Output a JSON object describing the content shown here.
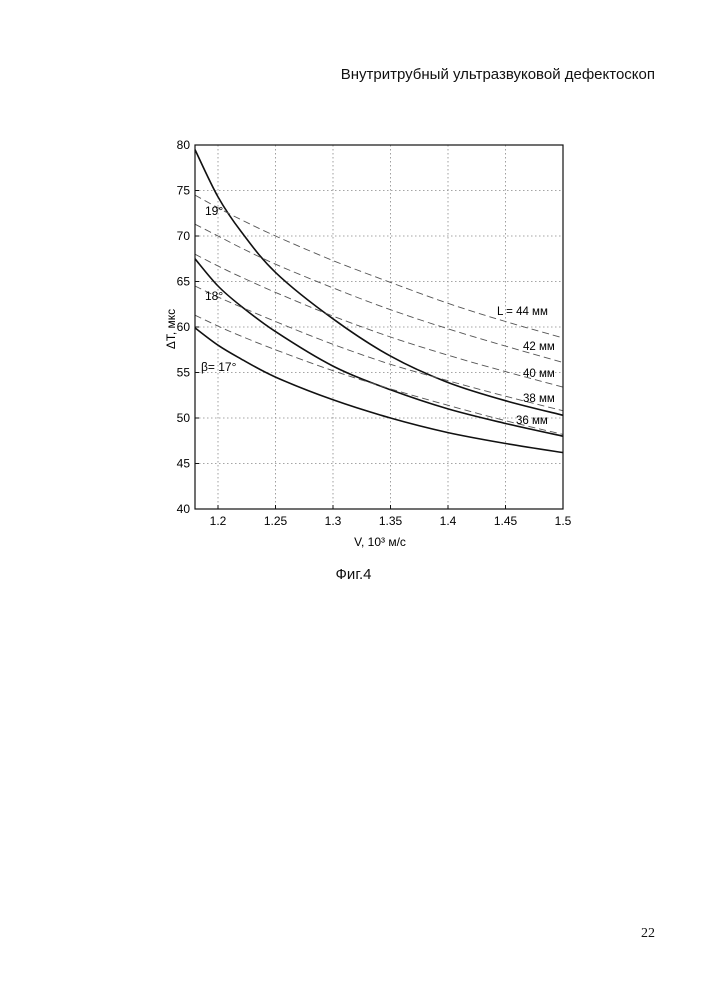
{
  "header": {
    "title": "Внутритрубный ультразвуковой дефектоскоп"
  },
  "figure": {
    "caption": "Фиг.4"
  },
  "page": {
    "number": "22"
  },
  "chart_data": {
    "type": "line",
    "xlabel": "V, 10³ м/с",
    "ylabel": "ΔT, мкс",
    "xlim": [
      1.18,
      1.5
    ],
    "ylim": [
      40,
      80
    ],
    "xticks": [
      "1.2",
      "1.25",
      "1.3",
      "1.35",
      "1.4",
      "1.45",
      "1.5"
    ],
    "xtick_values": [
      1.2,
      1.25,
      1.3,
      1.35,
      1.4,
      1.45,
      1.5
    ],
    "yticks": [
      "40",
      "45",
      "50",
      "55",
      "60",
      "65",
      "70",
      "75",
      "80"
    ],
    "ytick_values": [
      40,
      45,
      50,
      55,
      60,
      65,
      70,
      75,
      80
    ],
    "grid": true,
    "x": [
      1.18,
      1.2,
      1.22,
      1.25,
      1.3,
      1.35,
      1.4,
      1.45,
      1.5
    ],
    "series": [
      {
        "name": "β= 17°",
        "style": "solid",
        "values": [
          59.9,
          58.0,
          56.5,
          54.5,
          52.0,
          50.0,
          48.4,
          47.2,
          46.2
        ]
      },
      {
        "name": "18°",
        "style": "solid",
        "values": [
          67.5,
          64.5,
          62.3,
          59.5,
          55.7,
          53.1,
          51.0,
          49.4,
          48.0
        ]
      },
      {
        "name": "19°",
        "style": "solid",
        "values": [
          79.5,
          74.3,
          70.5,
          66.0,
          60.9,
          56.8,
          53.9,
          51.9,
          50.3
        ]
      },
      {
        "name": "L = 44 мм",
        "style": "dashed",
        "values": [
          74.5,
          73.1,
          71.8,
          70.0,
          67.3,
          64.9,
          62.6,
          60.6,
          58.8
        ]
      },
      {
        "name": "42 мм",
        "style": "dashed",
        "values": [
          71.3,
          70.0,
          68.7,
          66.9,
          64.3,
          61.9,
          59.8,
          57.9,
          56.1
        ]
      },
      {
        "name": "40 мм",
        "style": "dashed",
        "values": [
          68.0,
          66.7,
          65.5,
          63.8,
          61.2,
          58.9,
          56.9,
          55.1,
          53.4
        ]
      },
      {
        "name": "38 мм",
        "style": "dashed",
        "values": [
          64.5,
          63.3,
          62.2,
          60.6,
          58.1,
          55.9,
          54.1,
          52.4,
          50.8
        ]
      },
      {
        "name": "36 мм",
        "style": "dashed",
        "values": [
          61.3,
          60.1,
          59.0,
          57.5,
          55.2,
          53.2,
          51.4,
          49.7,
          48.2
        ]
      }
    ],
    "labels": {
      "beta17": "β= 17°",
      "beta18": "18°",
      "beta19": "19°",
      "L44": "L = 44 мм",
      "L42": "42 мм",
      "L40": "40 мм",
      "L38": "38 мм",
      "L36": "36 мм"
    }
  }
}
